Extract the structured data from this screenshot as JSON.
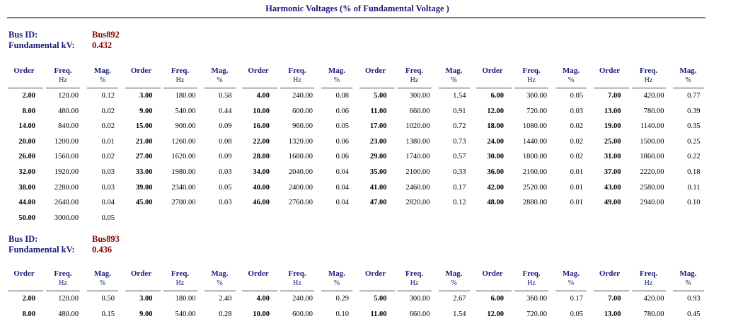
{
  "report": {
    "title": "Harmonic Voltages (% of Fundamental Voltage )"
  },
  "labels": {
    "bus_id": "Bus ID:",
    "fundamental_kv": "Fundamental kV:"
  },
  "columns": {
    "order": "Order",
    "freq": "Freq.",
    "freq_unit": "Hz",
    "mag": "Mag.",
    "mag_unit": "%"
  },
  "buses": [
    {
      "id": "Bus892",
      "kv": "0.432",
      "rows": [
        [
          [
            "2.00",
            "120.00",
            "0.12"
          ],
          [
            "3.00",
            "180.00",
            "0.58"
          ],
          [
            "4.00",
            "240.00",
            "0.08"
          ],
          [
            "5.00",
            "300.00",
            "1.54"
          ],
          [
            "6.00",
            "360.00",
            "0.05"
          ],
          [
            "7.00",
            "420.00",
            "0.77"
          ]
        ],
        [
          [
            "8.00",
            "480.00",
            "0.02"
          ],
          [
            "9.00",
            "540.00",
            "0.44"
          ],
          [
            "10.00",
            "600.00",
            "0.06"
          ],
          [
            "11.00",
            "660.00",
            "0.91"
          ],
          [
            "12.00",
            "720.00",
            "0.03"
          ],
          [
            "13.00",
            "780.00",
            "0.39"
          ]
        ],
        [
          [
            "14.00",
            "840.00",
            "0.02"
          ],
          [
            "15.00",
            "900.00",
            "0.09"
          ],
          [
            "16.00",
            "960.00",
            "0.05"
          ],
          [
            "17.00",
            "1020.00",
            "0.72"
          ],
          [
            "18.00",
            "1080.00",
            "0.02"
          ],
          [
            "19.00",
            "1140.00",
            "0.35"
          ]
        ],
        [
          [
            "20.00",
            "1200.00",
            "0.01"
          ],
          [
            "21.00",
            "1260.00",
            "0.08"
          ],
          [
            "22.00",
            "1320.00",
            "0.06"
          ],
          [
            "23.00",
            "1380.00",
            "0.73"
          ],
          [
            "24.00",
            "1440.00",
            "0.02"
          ],
          [
            "25.00",
            "1500.00",
            "0.25"
          ]
        ],
        [
          [
            "26.00",
            "1560.00",
            "0.02"
          ],
          [
            "27.00",
            "1620.00",
            "0.09"
          ],
          [
            "28.00",
            "1680.00",
            "0.06"
          ],
          [
            "29.00",
            "1740.00",
            "0.57"
          ],
          [
            "30.00",
            "1800.00",
            "0.02"
          ],
          [
            "31.00",
            "1860.00",
            "0.22"
          ]
        ],
        [
          [
            "32.00",
            "1920.00",
            "0.03"
          ],
          [
            "33.00",
            "1980.00",
            "0.03"
          ],
          [
            "34.00",
            "2040.00",
            "0.04"
          ],
          [
            "35.00",
            "2100.00",
            "0.33"
          ],
          [
            "36.00",
            "2160.00",
            "0.01"
          ],
          [
            "37.00",
            "2220.00",
            "0.18"
          ]
        ],
        [
          [
            "38.00",
            "2280.00",
            "0.03"
          ],
          [
            "39.00",
            "2340.00",
            "0.05"
          ],
          [
            "40.00",
            "2400.00",
            "0.04"
          ],
          [
            "41.00",
            "2460.00",
            "0.17"
          ],
          [
            "42.00",
            "2520.00",
            "0.01"
          ],
          [
            "43.00",
            "2580.00",
            "0.11"
          ]
        ],
        [
          [
            "44.00",
            "2640.00",
            "0.04"
          ],
          [
            "45.00",
            "2700.00",
            "0.03"
          ],
          [
            "46.00",
            "2760.00",
            "0.04"
          ],
          [
            "47.00",
            "2820.00",
            "0.12"
          ],
          [
            "48.00",
            "2880.00",
            "0.01"
          ],
          [
            "49.00",
            "2940.00",
            "0.10"
          ]
        ],
        [
          [
            "50.00",
            "3000.00",
            "0.05"
          ]
        ]
      ]
    },
    {
      "id": "Bus893",
      "kv": "0.436",
      "rows": [
        [
          [
            "2.00",
            "120.00",
            "0.50"
          ],
          [
            "3.00",
            "180.00",
            "2.40"
          ],
          [
            "4.00",
            "240.00",
            "0.29"
          ],
          [
            "5.00",
            "300.00",
            "2.67"
          ],
          [
            "6.00",
            "360.00",
            "0.17"
          ],
          [
            "7.00",
            "420.00",
            "0.93"
          ]
        ],
        [
          [
            "8.00",
            "480.00",
            "0.15"
          ],
          [
            "9.00",
            "540.00",
            "0.28"
          ],
          [
            "10.00",
            "600.00",
            "0.10"
          ],
          [
            "11.00",
            "660.00",
            "1.54"
          ],
          [
            "12.00",
            "720.00",
            "0.05"
          ],
          [
            "13.00",
            "780.00",
            "0.45"
          ]
        ]
      ]
    }
  ]
}
